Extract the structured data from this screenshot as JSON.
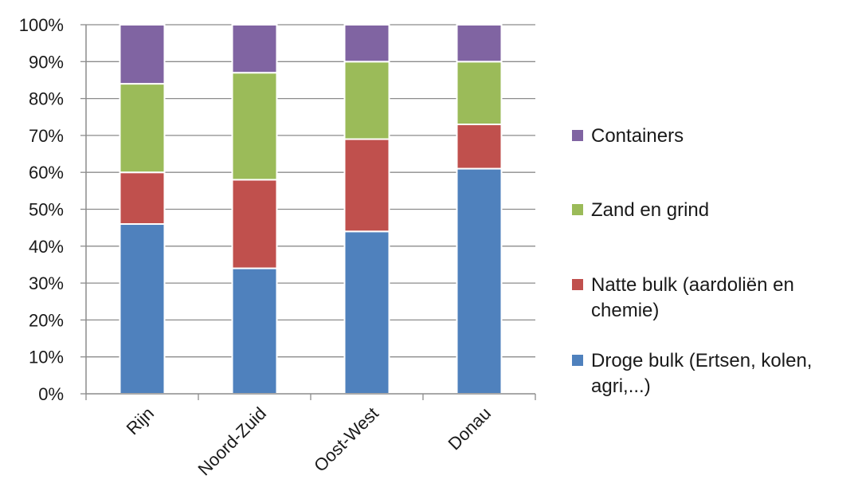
{
  "chart_data": {
    "type": "bar",
    "stacked": "percent",
    "categories": [
      "Rijn",
      "Noord-Zuid",
      "Oost-West",
      "Donau"
    ],
    "series": [
      {
        "name": "Droge bulk (Ertsen, kolen, agri,...)",
        "color": "#4F81BD",
        "values": [
          46,
          34,
          44,
          61
        ]
      },
      {
        "name": "Natte bulk (aardoliën en chemie)",
        "color": "#C0504D",
        "values": [
          14,
          24,
          25,
          12
        ]
      },
      {
        "name": "Zand en grind",
        "color": "#9BBB59",
        "values": [
          24,
          29,
          21,
          17
        ]
      },
      {
        "name": "Containers",
        "color": "#8064A2",
        "values": [
          16,
          13,
          10,
          10
        ]
      }
    ],
    "yticks": [
      "0%",
      "10%",
      "20%",
      "30%",
      "40%",
      "50%",
      "60%",
      "70%",
      "80%",
      "90%",
      "100%"
    ],
    "ylim": [
      0,
      100
    ],
    "grid": true,
    "legend_position": "right"
  }
}
